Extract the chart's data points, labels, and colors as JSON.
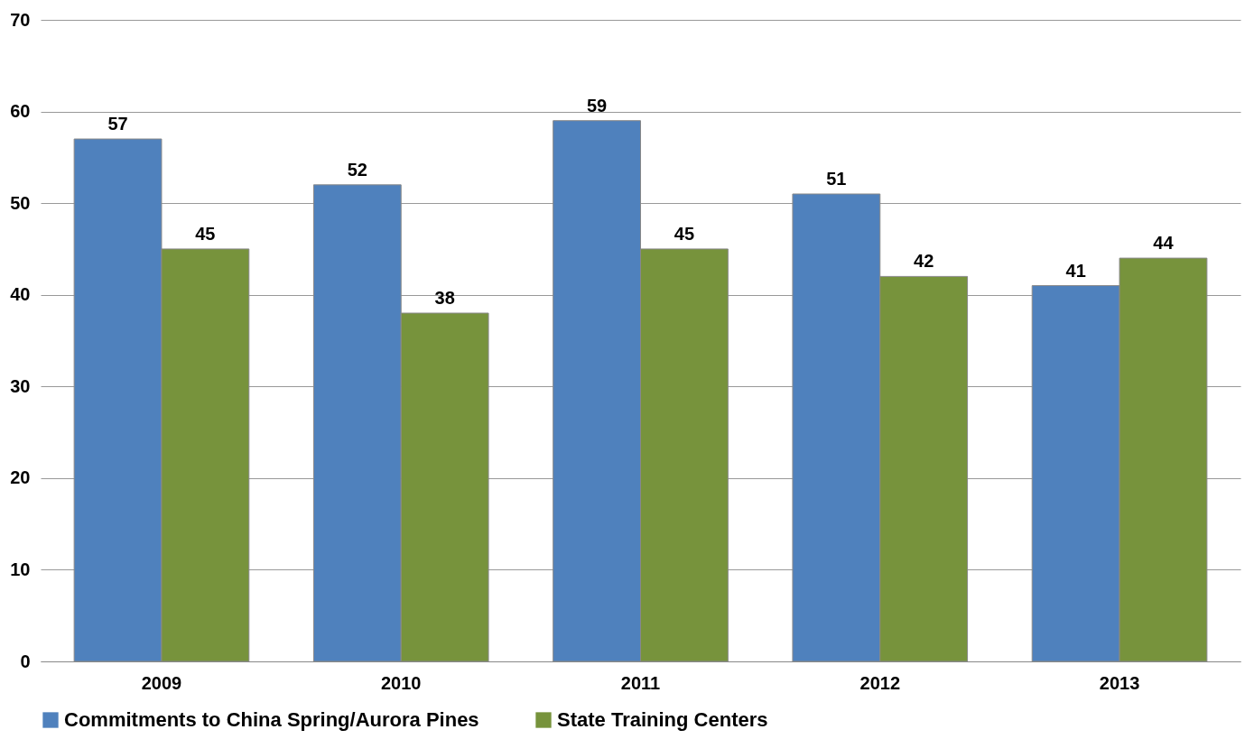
{
  "chart_data": {
    "type": "bar",
    "categories": [
      "2009",
      "2010",
      "2011",
      "2012",
      "2013"
    ],
    "series": [
      {
        "name": "Commitments to China Spring/Aurora Pines",
        "color": "#4f81bd",
        "values": [
          57,
          52,
          59,
          51,
          41
        ]
      },
      {
        "name": "State Training Centers",
        "color": "#77933c",
        "values": [
          45,
          38,
          45,
          42,
          44
        ]
      }
    ],
    "ylim": [
      0,
      70
    ],
    "yticks": [
      0,
      10,
      20,
      30,
      40,
      50,
      60,
      70
    ],
    "grid": "y",
    "legend": "bottom",
    "data_labels": true
  }
}
